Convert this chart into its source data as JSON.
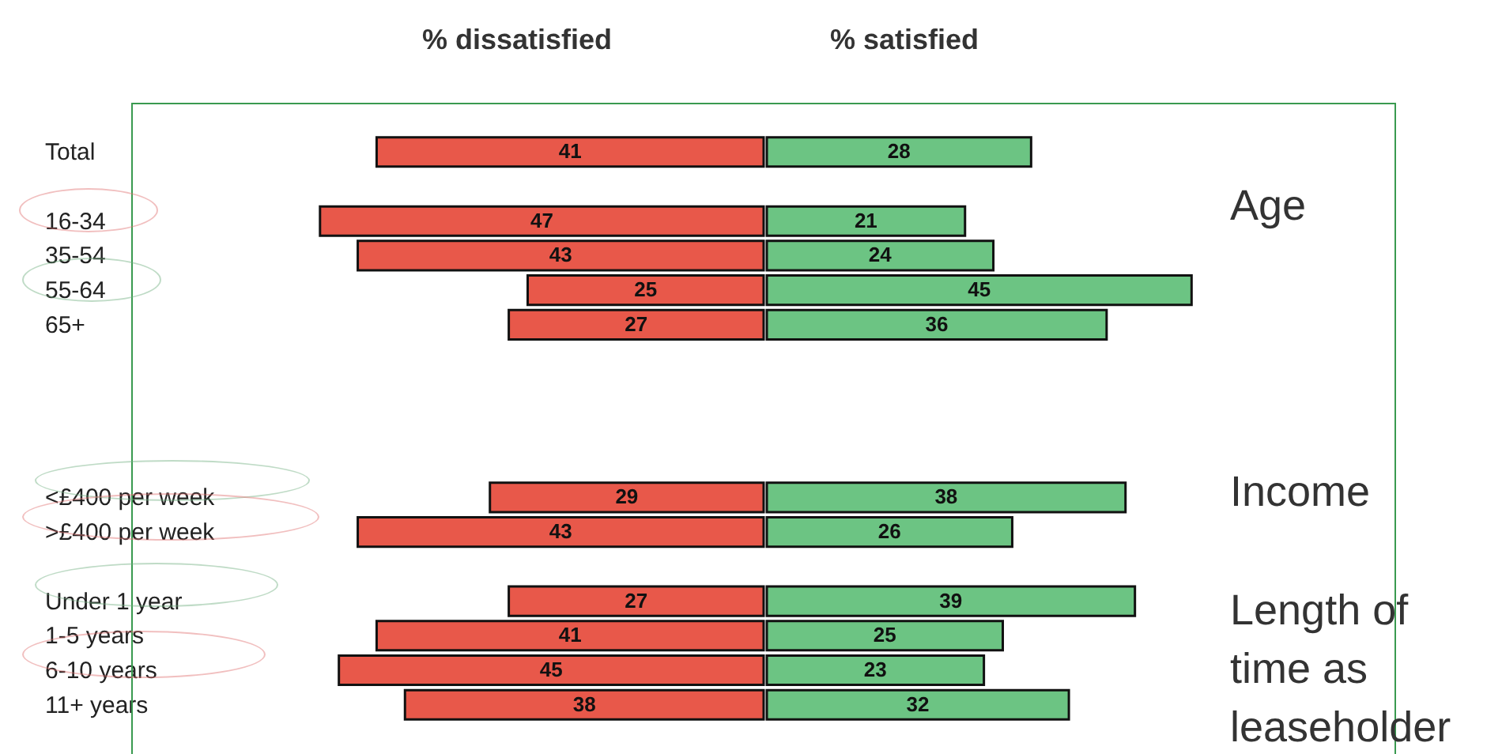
{
  "chart_data": [
    {
      "type": "bar",
      "orientation": "horizontal",
      "title": "% dissatisfied",
      "data_labels": true,
      "tick_labels": "y",
      "xlim": [
        67,
        0
      ],
      "categories": [
        "Total",
        null,
        "16-34",
        "35-54",
        "55-64",
        "65+",
        null,
        null,
        null,
        null,
        "<£400 per week",
        ">£400 per week",
        null,
        "Under 1 year",
        "1-5 years",
        "6-10 years",
        "11+ years"
      ],
      "series": [
        {
          "color": "#e8584a",
          "values": [
            41,
            null,
            47,
            43,
            25,
            27,
            null,
            null,
            null,
            null,
            29,
            43,
            null,
            27,
            41,
            45,
            38
          ]
        }
      ]
    },
    {
      "type": "bar",
      "orientation": "horizontal",
      "title": "% satisfied",
      "data_labels": true,
      "tick_labels": false,
      "xlim": [
        0,
        67
      ],
      "categories": [
        null,
        null,
        null,
        null,
        null,
        null,
        null,
        null,
        null,
        null,
        null,
        null,
        null,
        null,
        null,
        null,
        null
      ],
      "series": [
        {
          "color": "#6cc483",
          "values": [
            28,
            null,
            21,
            24,
            45,
            36,
            null,
            null,
            null,
            null,
            38,
            26,
            null,
            39,
            25,
            23,
            32
          ]
        }
      ],
      "annotations": [
        "Age",
        "Income",
        "Length of time as leaseholder"
      ]
    }
  ]
}
